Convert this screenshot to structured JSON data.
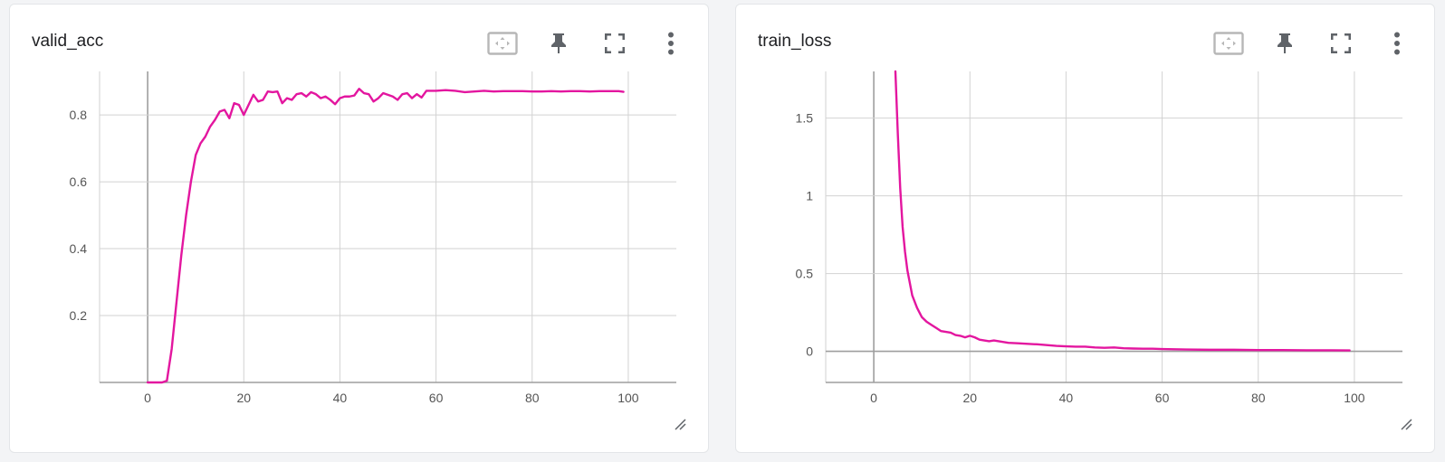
{
  "colors": {
    "series": "#e3169f",
    "grid": "#d2d2d2",
    "axis": "#9e9e9e"
  },
  "toolbar_icons": [
    "fit-domain-icon",
    "pin-icon",
    "fullscreen-icon",
    "more-vert-icon"
  ],
  "chart_data": [
    {
      "type": "line",
      "title": "valid_acc",
      "xlim": [
        -10,
        110
      ],
      "ylim": [
        0,
        0.93
      ],
      "xticks": [
        0,
        20,
        40,
        60,
        80,
        100
      ],
      "xtick_labels": [
        "0",
        "20",
        "40",
        "60",
        "80",
        "100"
      ],
      "yticks": [
        0.2,
        0.4,
        0.6,
        0.8
      ],
      "ytick_labels": [
        "0.2",
        "0.4",
        "0.6",
        "0.8"
      ],
      "grid": true,
      "series": [
        {
          "x": [
            0,
            1,
            2,
            3,
            4,
            5,
            6,
            7,
            8,
            9,
            10,
            11,
            12,
            13,
            14,
            15,
            16,
            17,
            18,
            19,
            20,
            21,
            22,
            23,
            24,
            25,
            26,
            27,
            28,
            29,
            30,
            31,
            32,
            33,
            34,
            35,
            36,
            37,
            38,
            39,
            40,
            41,
            42,
            43,
            44,
            45,
            46,
            47,
            48,
            49,
            50,
            51,
            52,
            53,
            54,
            55,
            56,
            57,
            58,
            59,
            60,
            62,
            64,
            66,
            68,
            70,
            72,
            74,
            76,
            78,
            80,
            82,
            84,
            86,
            88,
            90,
            92,
            94,
            96,
            98,
            99
          ],
          "values": [
            0,
            0,
            0,
            0,
            0.005,
            0.1,
            0.24,
            0.38,
            0.5,
            0.6,
            0.68,
            0.715,
            0.735,
            0.765,
            0.785,
            0.81,
            0.815,
            0.79,
            0.835,
            0.83,
            0.8,
            0.83,
            0.86,
            0.84,
            0.845,
            0.87,
            0.868,
            0.87,
            0.835,
            0.85,
            0.845,
            0.862,
            0.865,
            0.855,
            0.868,
            0.862,
            0.85,
            0.855,
            0.845,
            0.832,
            0.85,
            0.855,
            0.855,
            0.858,
            0.878,
            0.865,
            0.862,
            0.84,
            0.85,
            0.865,
            0.86,
            0.855,
            0.845,
            0.862,
            0.865,
            0.85,
            0.862,
            0.852,
            0.872,
            0.872,
            0.872,
            0.874,
            0.872,
            0.868,
            0.87,
            0.872,
            0.87,
            0.871,
            0.871,
            0.871,
            0.87,
            0.87,
            0.871,
            0.87,
            0.871,
            0.871,
            0.87,
            0.871,
            0.871,
            0.871,
            0.869
          ]
        }
      ]
    },
    {
      "type": "line",
      "title": "train_loss",
      "xlim": [
        -10,
        110
      ],
      "ylim": [
        -0.2,
        1.8
      ],
      "xticks": [
        0,
        20,
        40,
        60,
        80,
        100
      ],
      "xtick_labels": [
        "0",
        "20",
        "40",
        "60",
        "80",
        "100"
      ],
      "yticks": [
        0,
        0.5,
        1,
        1.5
      ],
      "ytick_labels": [
        "0",
        "0.5",
        "1",
        "1.5"
      ],
      "grid": true,
      "series": [
        {
          "x": [
            4.5,
            5,
            5.5,
            6,
            6.5,
            7,
            8,
            9,
            10,
            11,
            12,
            13,
            14,
            15,
            16,
            17,
            18,
            19,
            20,
            21,
            22,
            23,
            24,
            25,
            26,
            28,
            30,
            32,
            34,
            36,
            38,
            40,
            42,
            44,
            46,
            48,
            50,
            52,
            54,
            56,
            58,
            60,
            65,
            70,
            75,
            80,
            85,
            90,
            95,
            99
          ],
          "values": [
            1.82,
            1.4,
            1.05,
            0.8,
            0.64,
            0.52,
            0.36,
            0.28,
            0.22,
            0.19,
            0.17,
            0.15,
            0.13,
            0.125,
            0.12,
            0.105,
            0.1,
            0.09,
            0.1,
            0.09,
            0.075,
            0.07,
            0.065,
            0.07,
            0.065,
            0.055,
            0.052,
            0.048,
            0.045,
            0.04,
            0.035,
            0.032,
            0.03,
            0.03,
            0.025,
            0.023,
            0.025,
            0.02,
            0.018,
            0.017,
            0.017,
            0.015,
            0.012,
            0.01,
            0.01,
            0.008,
            0.008,
            0.007,
            0.007,
            0.006
          ]
        }
      ]
    }
  ]
}
